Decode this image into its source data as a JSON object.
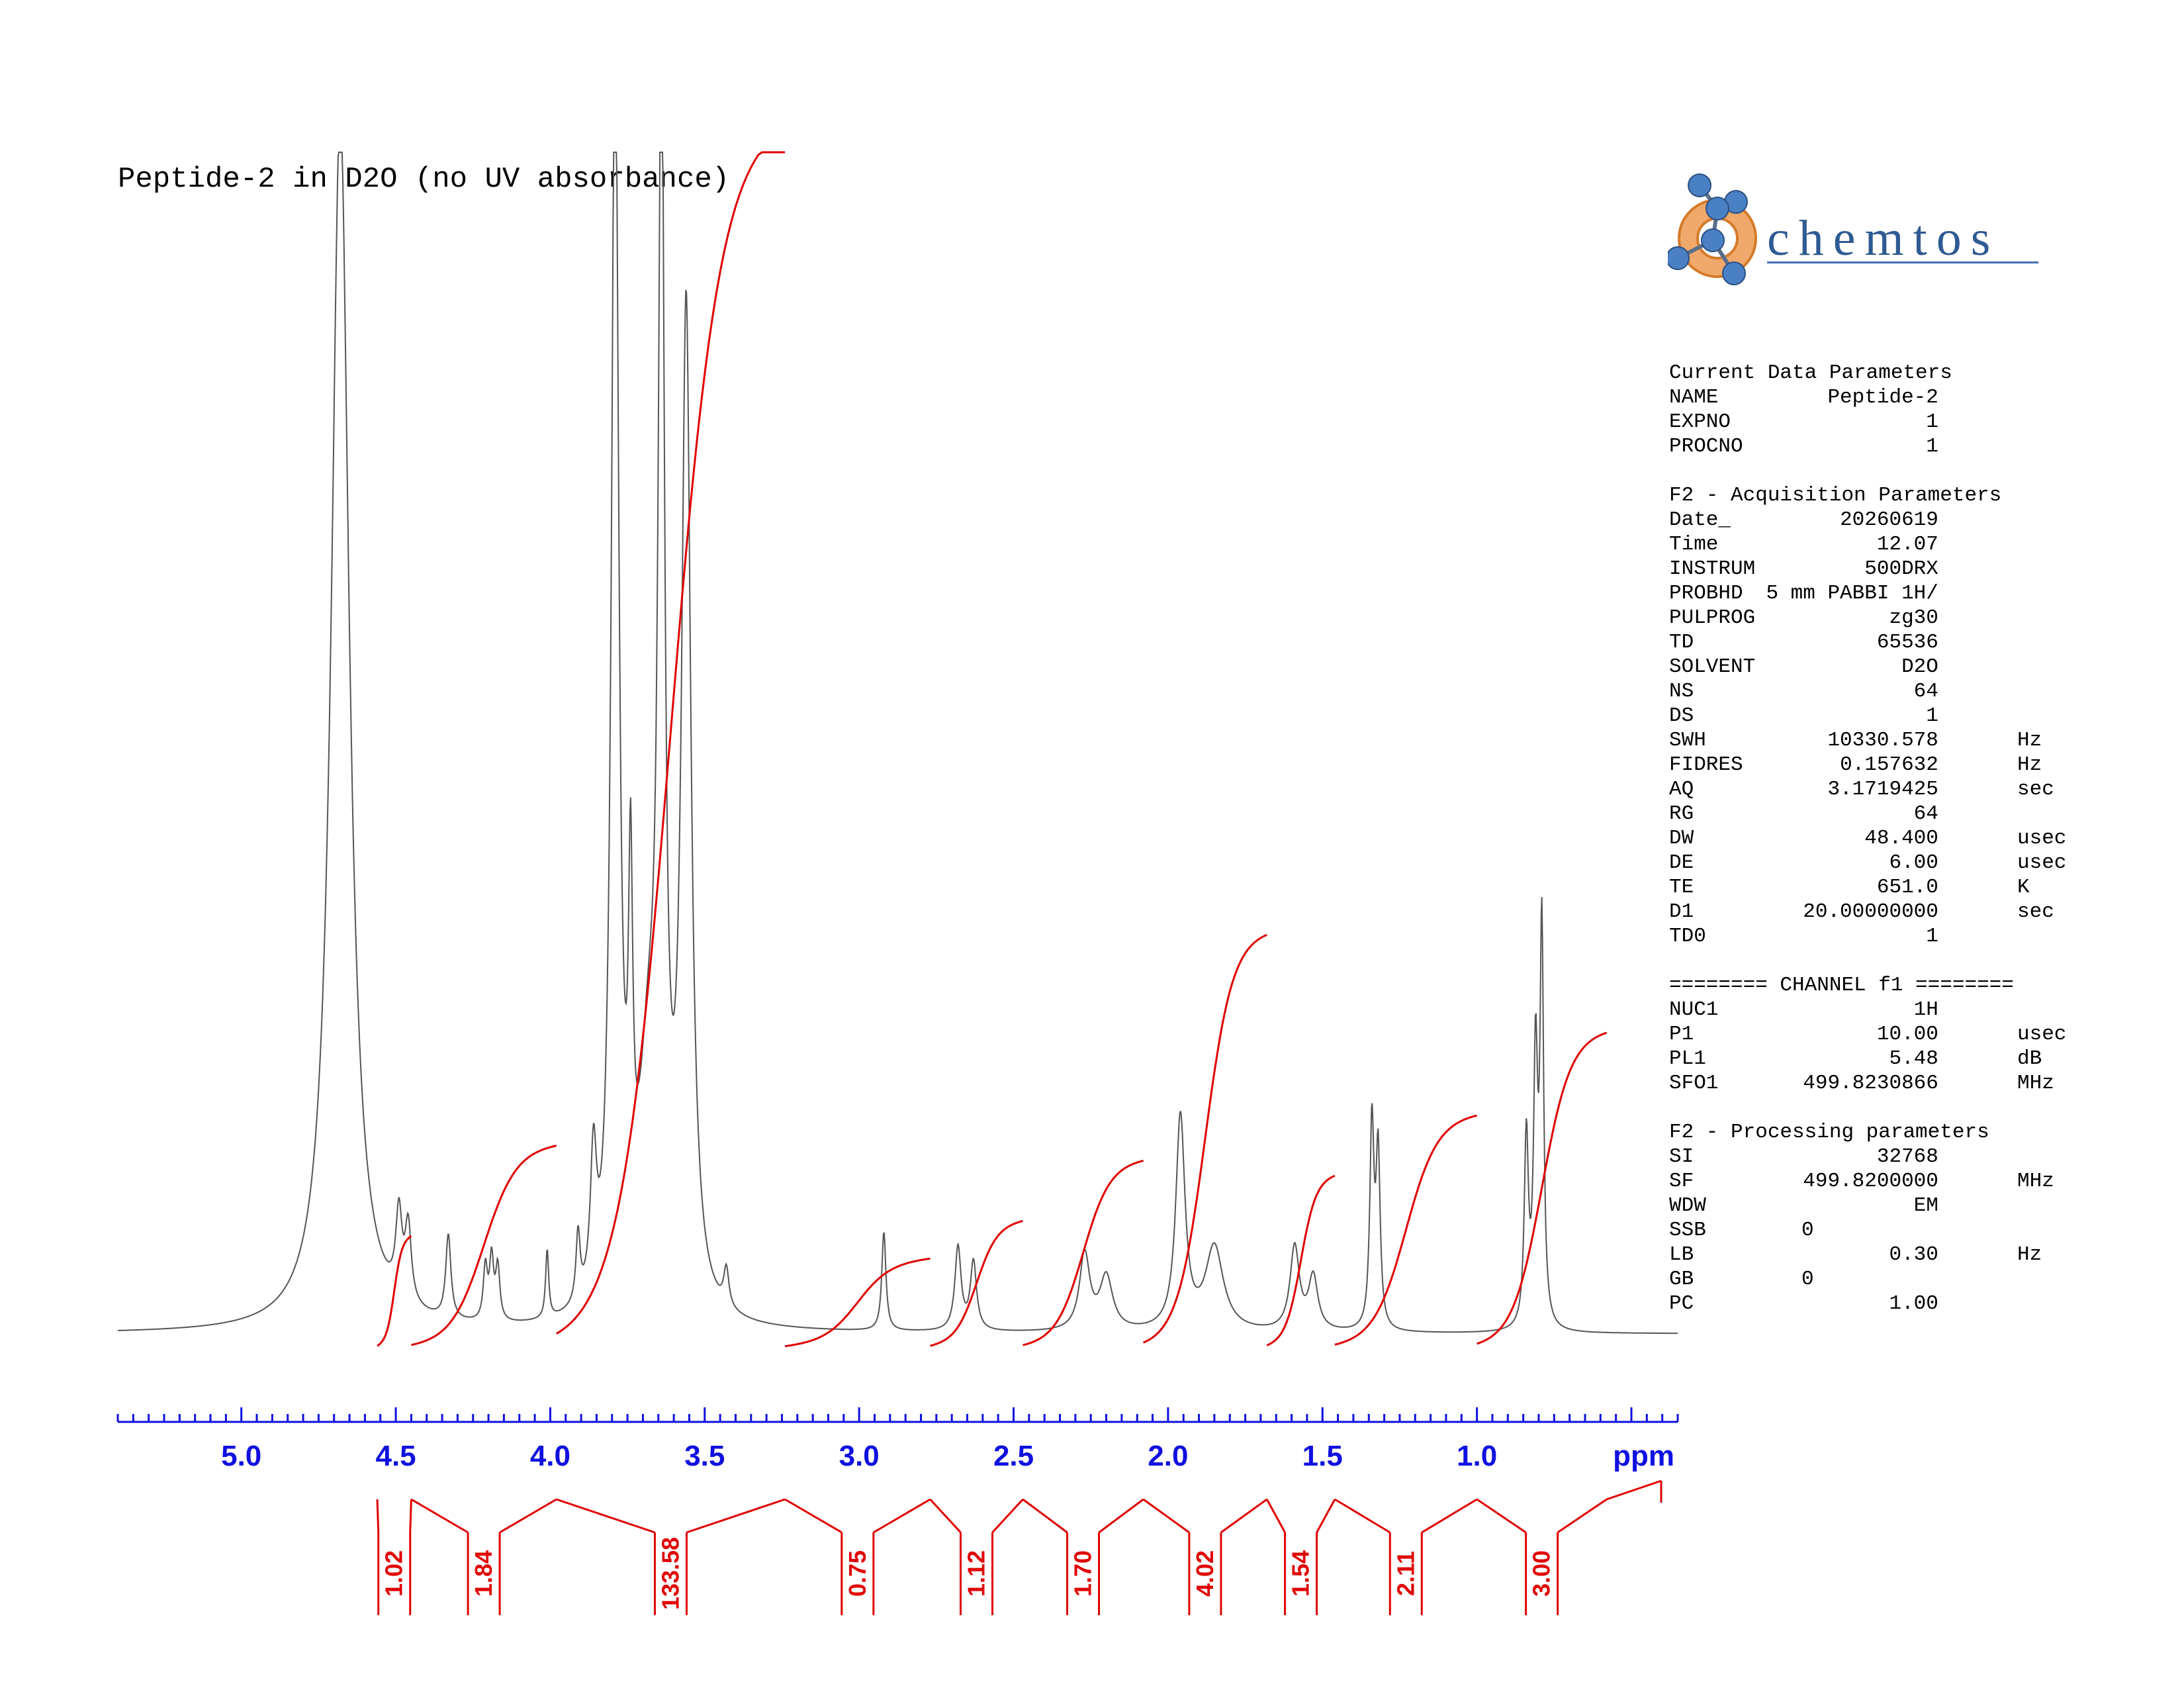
{
  "title": "Peptide-2 in D2O (no UV absorbance)",
  "logo": {
    "text": "chemtos"
  },
  "colors": {
    "spectrum": "#555555",
    "integral": "#e00000",
    "axis": "#1010e0"
  },
  "parameters": {
    "sections": [
      {
        "heading": "Current Data Parameters",
        "rows": [
          {
            "key": "NAME",
            "value": "Peptide-2",
            "unit": ""
          },
          {
            "key": "EXPNO",
            "value": "1",
            "unit": ""
          },
          {
            "key": "PROCNO",
            "value": "1",
            "unit": ""
          }
        ]
      },
      {
        "heading": "F2 - Acquisition Parameters",
        "rows": [
          {
            "key": "Date_",
            "value": "20260619",
            "unit": ""
          },
          {
            "key": "Time",
            "value": "12.07",
            "unit": ""
          },
          {
            "key": "INSTRUM",
            "value": "500DRX",
            "unit": ""
          },
          {
            "key": "PROBHD",
            "value": "5 mm PABBI 1H/",
            "unit": ""
          },
          {
            "key": "PULPROG",
            "value": "zg30",
            "unit": ""
          },
          {
            "key": "TD",
            "value": "65536",
            "unit": ""
          },
          {
            "key": "SOLVENT",
            "value": "D2O",
            "unit": ""
          },
          {
            "key": "NS",
            "value": "64",
            "unit": ""
          },
          {
            "key": "DS",
            "value": "1",
            "unit": ""
          },
          {
            "key": "SWH",
            "value": "10330.578",
            "unit": "Hz"
          },
          {
            "key": "FIDRES",
            "value": "0.157632",
            "unit": "Hz"
          },
          {
            "key": "AQ",
            "value": "3.1719425",
            "unit": "sec"
          },
          {
            "key": "RG",
            "value": "64",
            "unit": ""
          },
          {
            "key": "DW",
            "value": "48.400",
            "unit": "usec"
          },
          {
            "key": "DE",
            "value": "6.00",
            "unit": "usec"
          },
          {
            "key": "TE",
            "value": "651.0",
            "unit": "K"
          },
          {
            "key": "D1",
            "value": "20.00000000",
            "unit": "sec"
          },
          {
            "key": "TD0",
            "value": "1",
            "unit": ""
          }
        ]
      },
      {
        "heading": "======== CHANNEL f1 ========",
        "rows": [
          {
            "key": "NUC1",
            "value": "1H",
            "unit": ""
          },
          {
            "key": "P1",
            "value": "10.00",
            "unit": "usec"
          },
          {
            "key": "PL1",
            "value": "5.48",
            "unit": "dB"
          },
          {
            "key": "SFO1",
            "value": "499.8230866",
            "unit": "MHz"
          }
        ]
      },
      {
        "heading": "F2 - Processing parameters",
        "rows": [
          {
            "key": "SI",
            "value": "32768",
            "unit": ""
          },
          {
            "key": "SF",
            "value": "499.8200000",
            "unit": "MHz"
          },
          {
            "key": "WDW",
            "value": "EM",
            "unit": ""
          },
          {
            "key": "SSB",
            "value": "0",
            "unit": "",
            "mid": true
          },
          {
            "key": "LB",
            "value": "0.30",
            "unit": "Hz"
          },
          {
            "key": "GB",
            "value": "0",
            "unit": "",
            "mid": true
          },
          {
            "key": "PC",
            "value": "1.00",
            "unit": ""
          }
        ]
      }
    ]
  },
  "chart_data": {
    "type": "line",
    "xlabel": "ppm",
    "x_reversed": true,
    "xlim": [
      5.4,
      0.35
    ],
    "xticks": [
      5.0,
      4.5,
      4.0,
      3.5,
      3.0,
      2.5,
      2.0,
      1.5,
      1.0
    ],
    "xtick_labels": [
      "5.0",
      "4.5",
      "4.0",
      "3.5",
      "3.0",
      "2.5",
      "2.0",
      "1.5",
      "1.0"
    ],
    "grid": false,
    "series": [
      {
        "peaks": [
          {
            "ppm": 4.68,
            "height": 1.6,
            "width": 0.035
          },
          {
            "ppm": 4.49,
            "height": 0.11,
            "width": 0.012
          },
          {
            "ppm": 4.46,
            "height": 0.1,
            "width": 0.012
          },
          {
            "ppm": 4.33,
            "height": 0.11,
            "width": 0.01
          },
          {
            "ppm": 4.21,
            "height": 0.07,
            "width": 0.008
          },
          {
            "ppm": 4.19,
            "height": 0.08,
            "width": 0.008
          },
          {
            "ppm": 4.17,
            "height": 0.07,
            "width": 0.008
          },
          {
            "ppm": 4.01,
            "height": 0.09,
            "width": 0.006
          },
          {
            "ppm": 3.91,
            "height": 0.09,
            "width": 0.008
          },
          {
            "ppm": 3.86,
            "height": 0.18,
            "width": 0.012
          },
          {
            "ppm": 3.79,
            "height": 1.7,
            "width": 0.014
          },
          {
            "ppm": 3.74,
            "height": 0.45,
            "width": 0.008
          },
          {
            "ppm": 3.68,
            "height": 0.3,
            "width": 0.04
          },
          {
            "ppm": 3.64,
            "height": 1.55,
            "width": 0.012
          },
          {
            "ppm": 3.56,
            "height": 1.3,
            "width": 0.018
          },
          {
            "ppm": 3.43,
            "height": 0.05,
            "width": 0.01
          },
          {
            "ppm": 2.92,
            "height": 0.13,
            "width": 0.008
          },
          {
            "ppm": 2.68,
            "height": 0.11,
            "width": 0.012
          },
          {
            "ppm": 2.63,
            "height": 0.09,
            "width": 0.012
          },
          {
            "ppm": 2.27,
            "height": 0.1,
            "width": 0.02
          },
          {
            "ppm": 2.2,
            "height": 0.07,
            "width": 0.025
          },
          {
            "ppm": 1.96,
            "height": 0.28,
            "width": 0.018
          },
          {
            "ppm": 1.85,
            "height": 0.11,
            "width": 0.035
          },
          {
            "ppm": 1.59,
            "height": 0.11,
            "width": 0.018
          },
          {
            "ppm": 1.53,
            "height": 0.07,
            "width": 0.018
          },
          {
            "ppm": 1.34,
            "height": 0.27,
            "width": 0.008
          },
          {
            "ppm": 1.32,
            "height": 0.23,
            "width": 0.008
          },
          {
            "ppm": 0.84,
            "height": 0.25,
            "width": 0.008
          },
          {
            "ppm": 0.81,
            "height": 0.35,
            "width": 0.008
          },
          {
            "ppm": 0.79,
            "height": 0.52,
            "width": 0.007
          }
        ]
      }
    ],
    "integrals": [
      {
        "from": 4.56,
        "to": 4.45,
        "value": "1.02",
        "rise": 0.13
      },
      {
        "from": 4.45,
        "to": 3.98,
        "value": "1.84",
        "rise": 0.25
      },
      {
        "from": 3.98,
        "to": 3.24,
        "value": "133.58",
        "rise": 1.6
      },
      {
        "from": 3.24,
        "to": 2.77,
        "value": "0.75",
        "rise": 0.1
      },
      {
        "from": 2.77,
        "to": 2.47,
        "value": "1.12",
        "rise": 0.15
      },
      {
        "from": 2.47,
        "to": 2.08,
        "value": "1.70",
        "rise": 0.23
      },
      {
        "from": 2.08,
        "to": 1.68,
        "value": "4.02",
        "rise": 0.53
      },
      {
        "from": 1.68,
        "to": 1.46,
        "value": "1.54",
        "rise": 0.21
      },
      {
        "from": 1.46,
        "to": 1.0,
        "value": "2.11",
        "rise": 0.29
      },
      {
        "from": 1.0,
        "to": 0.58,
        "value": "3.00",
        "rise": 0.4
      }
    ]
  }
}
